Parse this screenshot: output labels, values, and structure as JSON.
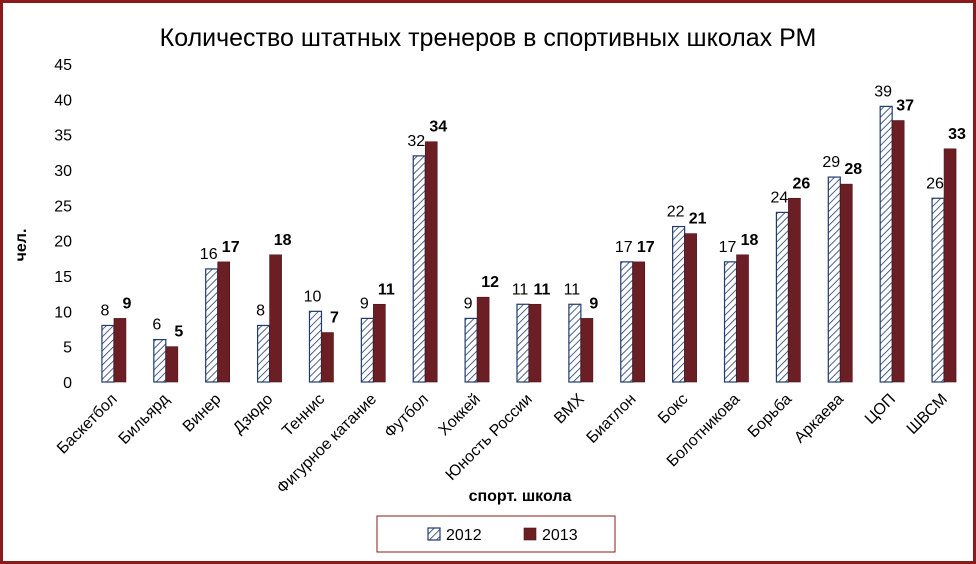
{
  "chart_data": {
    "type": "bar",
    "title": "Количество штатных тренеров в спортивных школах РМ",
    "xlabel": "спорт. школа",
    "ylabel": "чел.",
    "ylim": [
      0,
      45
    ],
    "yticks": [
      0,
      5,
      10,
      15,
      20,
      25,
      30,
      35,
      40,
      45
    ],
    "grid": false,
    "legend_position": "bottom",
    "categories": [
      "Баскетбол",
      "Бильярд",
      "Винер",
      "Дзюдо",
      "Теннис",
      "Фигурное катание",
      "Футбол",
      "Хоккей",
      "Юность России",
      "BMX",
      "Биатлон",
      "Бокс",
      "Болотникова",
      "Борьба",
      "Аркаева",
      "ЦОП",
      "ШВСМ"
    ],
    "series": [
      {
        "name": "2012",
        "values": [
          8,
          6,
          16,
          8,
          10,
          9,
          32,
          9,
          11,
          11,
          17,
          22,
          17,
          24,
          29,
          39,
          26
        ],
        "color": "#1f3a6e",
        "pattern": "hatched"
      },
      {
        "name": "2013",
        "values": [
          9,
          5,
          17,
          18,
          7,
          11,
          34,
          12,
          11,
          9,
          17,
          21,
          18,
          26,
          28,
          37,
          33
        ],
        "color": "#6b1f24",
        "pattern": "solid"
      }
    ]
  },
  "colors": {
    "border": "#8b1a1a",
    "series2012_outline": "#1f3a6e",
    "series2013_fill": "#6b1f24"
  }
}
